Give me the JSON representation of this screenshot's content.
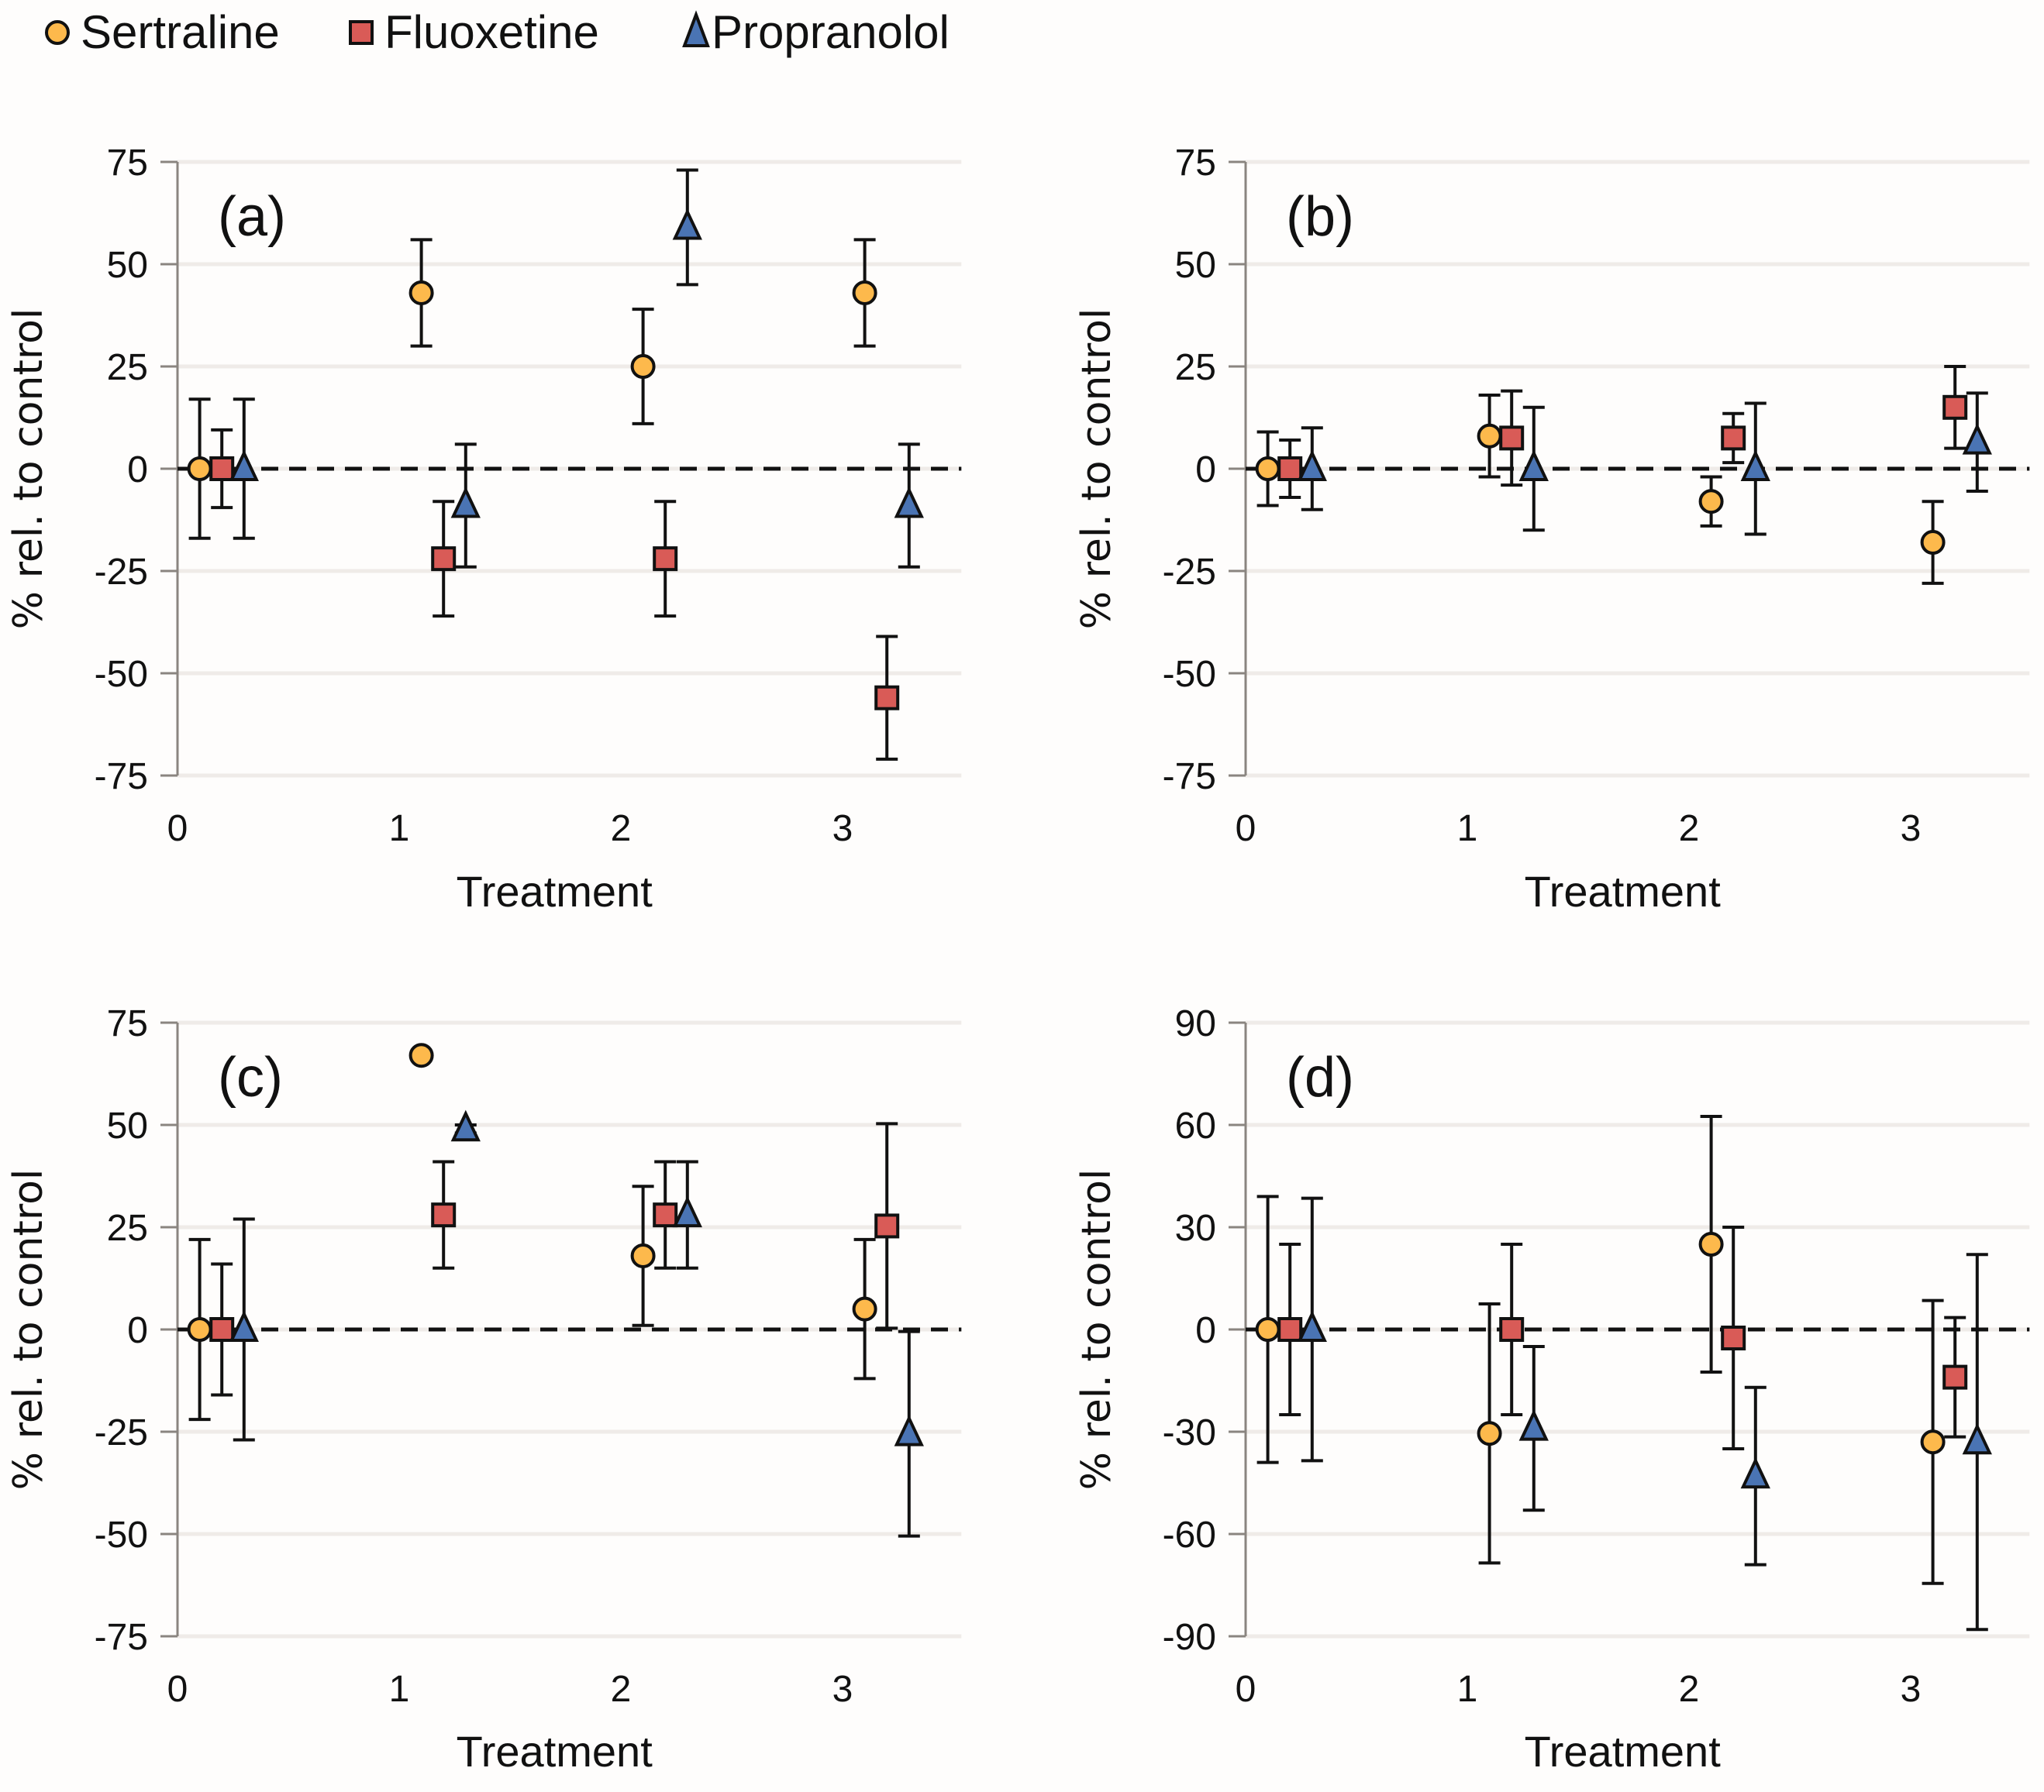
{
  "legend": [
    {
      "name": "Sertraline",
      "marker": "circle",
      "color": "#FDB94C"
    },
    {
      "name": "Fluoxetine",
      "marker": "square",
      "color": "#D95B57"
    },
    {
      "name": "Propranolol",
      "marker": "triangle",
      "color": "#4A74B4"
    }
  ],
  "chart_data": [
    {
      "type": "scatter",
      "panel_label": "(a)",
      "xlabel": "Treatment",
      "ylabel": "% rel. to control",
      "xticks": [
        0,
        1,
        2,
        3
      ],
      "yticks": [
        75,
        50,
        25,
        0,
        -25,
        -50,
        -75
      ],
      "ylim": [
        -75,
        75
      ],
      "xlim": [
        0,
        3.55
      ],
      "grid": true,
      "reference_line": 0,
      "categories": [
        0,
        1,
        2,
        3
      ],
      "series": [
        {
          "name": "Sertraline",
          "offset": 0.1,
          "values": [
            0,
            43,
            25,
            43
          ],
          "errors": [
            17,
            13,
            14,
            13
          ]
        },
        {
          "name": "Fluoxetine",
          "offset": 0.2,
          "values": [
            0,
            -22,
            -22,
            -56
          ],
          "errors": [
            9.5,
            14,
            14,
            15
          ]
        },
        {
          "name": "Propranolol",
          "offset": 0.3,
          "values": [
            0,
            -9,
            59,
            -9
          ],
          "errors": [
            17,
            15,
            14,
            15
          ]
        }
      ]
    },
    {
      "type": "scatter",
      "panel_label": "(b)",
      "xlabel": "Treatment",
      "ylabel": "% rel. to control",
      "xticks": [
        0,
        1,
        2,
        3
      ],
      "yticks": [
        75,
        50,
        25,
        0,
        -25,
        -50,
        -75
      ],
      "ylim": [
        -75,
        75
      ],
      "xlim": [
        0,
        3.55
      ],
      "grid": true,
      "reference_line": 0,
      "categories": [
        0,
        1,
        2,
        3
      ],
      "series": [
        {
          "name": "Sertraline",
          "offset": 0.1,
          "values": [
            0,
            8,
            -8,
            -18
          ],
          "errors": [
            9,
            10,
            6,
            10
          ]
        },
        {
          "name": "Fluoxetine",
          "offset": 0.2,
          "values": [
            0,
            7.5,
            7.5,
            15
          ],
          "errors": [
            7,
            11.5,
            6,
            10
          ]
        },
        {
          "name": "Propranolol",
          "offset": 0.3,
          "values": [
            0,
            0,
            0,
            6.5
          ],
          "errors": [
            10,
            15,
            16,
            12
          ]
        }
      ]
    },
    {
      "type": "scatter",
      "panel_label": "(c)",
      "xlabel": "Treatment",
      "ylabel": "% rel. to control",
      "xticks": [
        0,
        1,
        2,
        3
      ],
      "yticks": [
        75,
        50,
        25,
        0,
        -25,
        -50,
        -75
      ],
      "ylim": [
        -75,
        75
      ],
      "xlim": [
        0,
        3.55
      ],
      "grid": true,
      "reference_line": 0,
      "categories": [
        0,
        1,
        2,
        3
      ],
      "series": [
        {
          "name": "Sertraline",
          "offset": 0.1,
          "values": [
            0,
            67,
            18,
            5
          ],
          "errors": [
            22,
            0,
            17,
            17
          ]
        },
        {
          "name": "Fluoxetine",
          "offset": 0.2,
          "values": [
            0,
            28,
            28,
            25.3
          ],
          "errors": [
            16,
            13,
            13,
            25
          ]
        },
        {
          "name": "Propranolol",
          "offset": 0.3,
          "values": [
            0,
            49,
            28,
            -25.5
          ],
          "errors": [
            27,
            1,
            13,
            25
          ]
        }
      ]
    },
    {
      "type": "scatter",
      "panel_label": "(d)",
      "xlabel": "Treatment",
      "ylabel": "% rel. to control",
      "xticks": [
        0,
        1,
        2,
        3
      ],
      "yticks": [
        90,
        60,
        30,
        0,
        -30,
        -60,
        -90
      ],
      "ylim": [
        -90,
        90
      ],
      "xlim": [
        0,
        3.55
      ],
      "grid": true,
      "reference_line": 0,
      "categories": [
        0,
        1,
        2,
        3
      ],
      "series": [
        {
          "name": "Sertraline",
          "offset": 0.1,
          "values": [
            0,
            -30.5,
            25,
            -33
          ],
          "errors": [
            39,
            38,
            37.5,
            41.5
          ]
        },
        {
          "name": "Fluoxetine",
          "offset": 0.2,
          "values": [
            0,
            0,
            -2.5,
            -14
          ],
          "errors": [
            25,
            25,
            32.5,
            17.5
          ]
        },
        {
          "name": "Propranolol",
          "offset": 0.3,
          "values": [
            0,
            -29,
            -43,
            -33
          ],
          "errors": [
            38.5,
            24,
            26,
            55
          ]
        }
      ]
    }
  ]
}
